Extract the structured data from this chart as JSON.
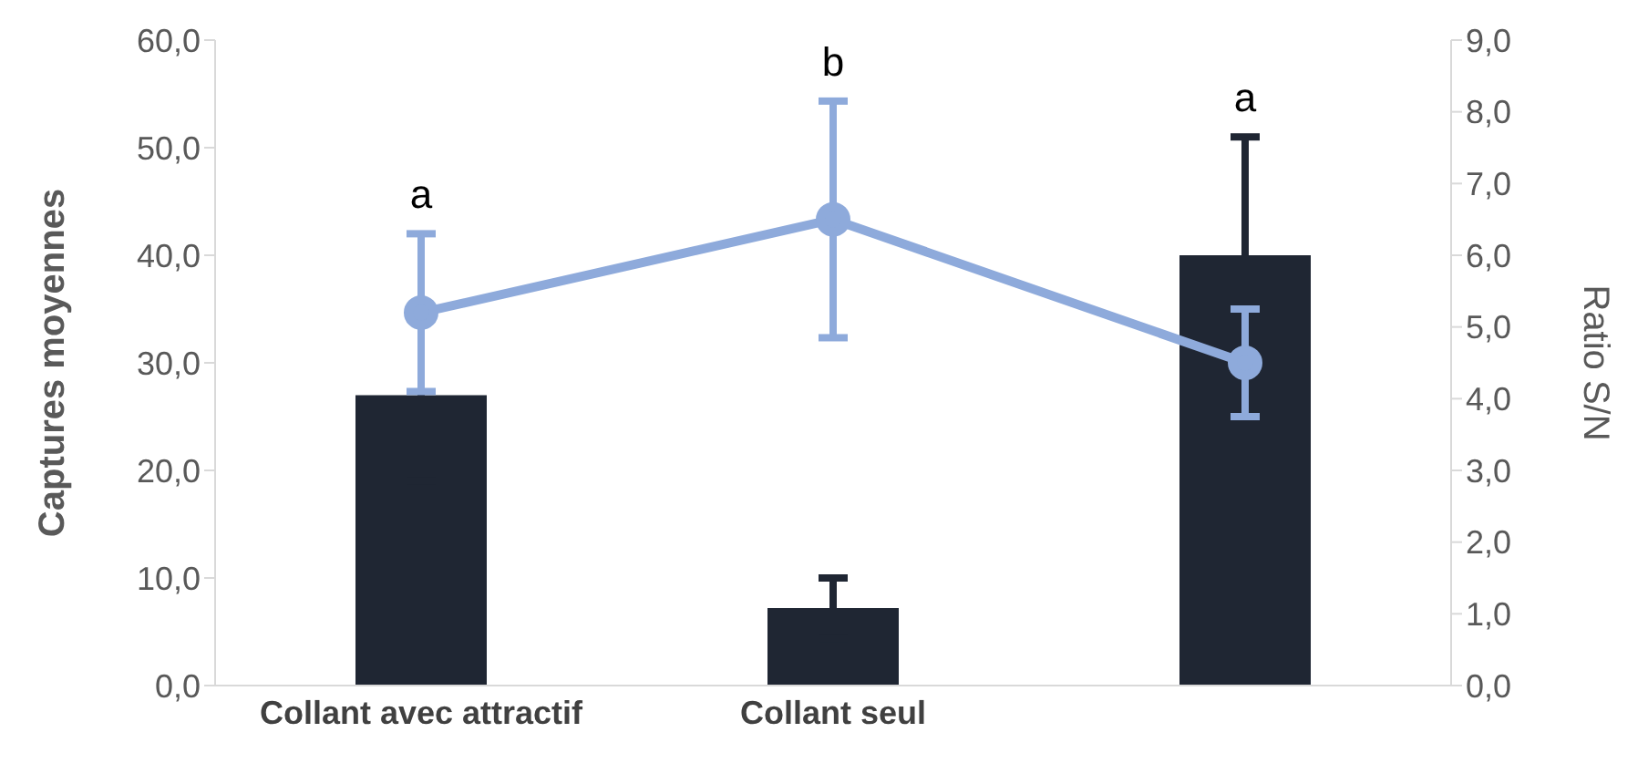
{
  "chart_data": {
    "type": "bar",
    "categories": [
      "Collant avec attractif",
      "Collant seul",
      null
    ],
    "ylabel": "Captures moyennes",
    "y2label": "Ratio S/N",
    "series": [
      {
        "color": "#1f2633",
        "values": [
          27.0,
          7.2,
          40.0
        ],
        "errors": [
          8,
          2.8,
          11
        ]
      },
      {
        "type": "line",
        "axis": "y2",
        "color": "#8eaadb",
        "values": [
          5.2,
          6.5,
          4.5
        ],
        "errors": [
          1.1,
          1.65,
          0.75
        ]
      }
    ],
    "ylim": [
      0,
      60
    ],
    "yticks": [
      {
        "value": 0,
        "label": "0,0"
      },
      {
        "value": 10,
        "label": "10,0"
      },
      {
        "value": 20,
        "label": "20,0"
      },
      {
        "value": 30,
        "label": "30,0"
      },
      {
        "value": 40,
        "label": "40,0"
      },
      {
        "value": 50,
        "label": "50,0"
      },
      {
        "value": 60,
        "label": "60,0"
      }
    ],
    "y2lim": [
      0,
      9
    ],
    "y2ticks": [
      {
        "value": 0,
        "label": "0,0"
      },
      {
        "value": 1,
        "label": "1,0"
      },
      {
        "value": 2,
        "label": "2,0"
      },
      {
        "value": 3,
        "label": "3,0"
      },
      {
        "value": 4,
        "label": "4,0"
      },
      {
        "value": 5,
        "label": "5,0"
      },
      {
        "value": 6,
        "label": "6,0"
      },
      {
        "value": 7,
        "label": "7,0"
      },
      {
        "value": 8,
        "label": "8,0"
      },
      {
        "value": 9,
        "label": "9,0"
      }
    ],
    "annotations": [
      "a",
      "b",
      "a"
    ],
    "marker": "circle",
    "grid": false,
    "legend": false
  }
}
